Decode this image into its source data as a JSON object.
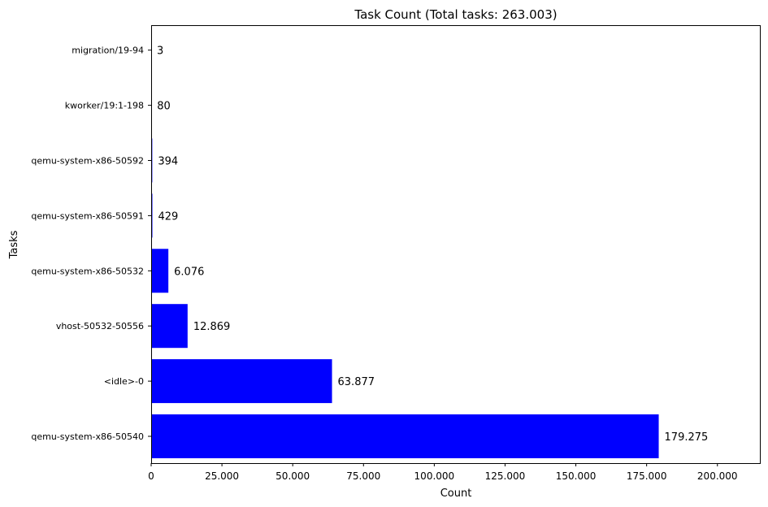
{
  "chart_data": {
    "type": "bar",
    "orientation": "horizontal",
    "title": "Task Count (Total tasks: 263.003)",
    "xlabel": "Count",
    "ylabel": "Tasks",
    "categories": [
      "qemu-system-x86-50540",
      "<idle>-0",
      "vhost-50532-50556",
      "qemu-system-x86-50532",
      "qemu-system-x86-50591",
      "qemu-system-x86-50592",
      "kworker/19:1-198",
      "migration/19-94"
    ],
    "values": [
      179275,
      63877,
      12869,
      6076,
      429,
      394,
      80,
      3
    ],
    "value_labels": [
      "179.275",
      "63.877",
      "12.869",
      "6.076",
      "429",
      "394",
      "80",
      "3"
    ],
    "xlim": [
      0,
      215000
    ],
    "xticks": [
      0,
      25000,
      50000,
      75000,
      100000,
      125000,
      150000,
      175000,
      200000
    ],
    "xtick_labels": [
      "0",
      "25.000",
      "50.000",
      "75.000",
      "100.000",
      "125.000",
      "150.000",
      "175.000",
      "200.000"
    ],
    "bar_color": "#0000ff",
    "grid": false,
    "legend": "none"
  }
}
